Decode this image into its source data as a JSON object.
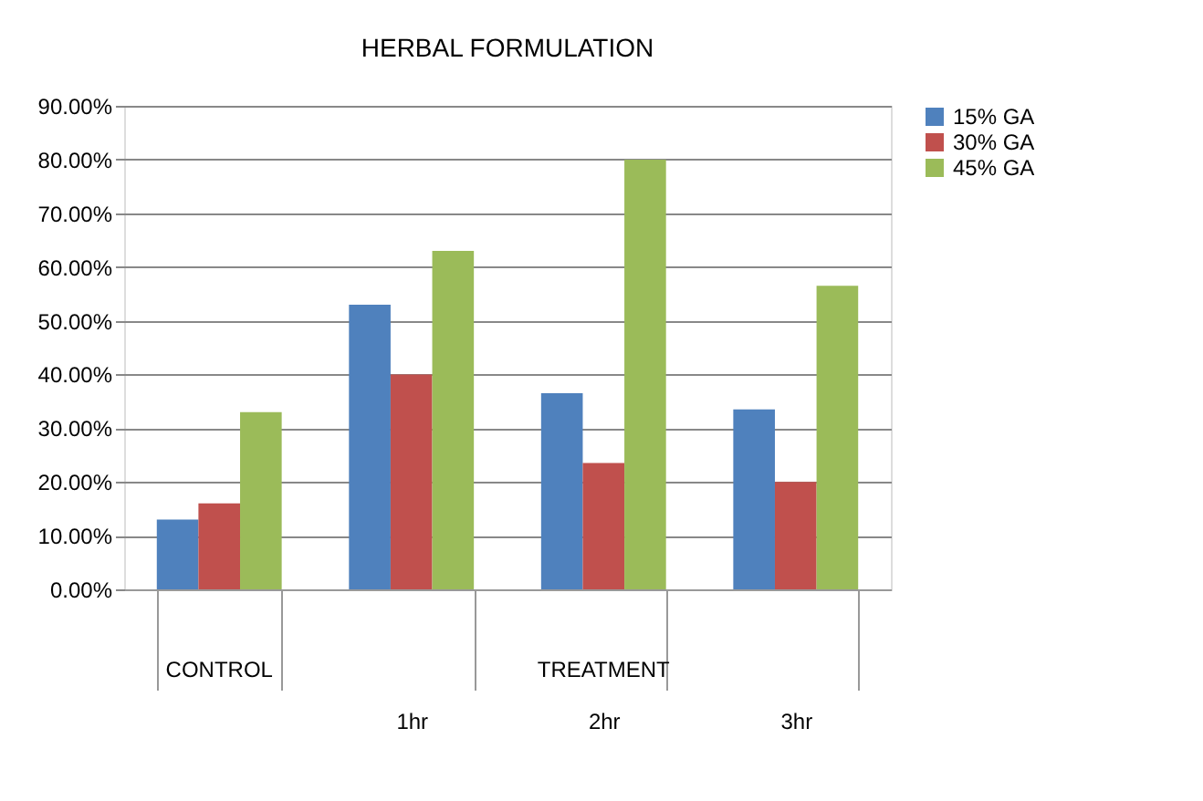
{
  "chart_data": {
    "type": "bar",
    "title": "HERBAL FORMULATION",
    "categories": [
      null,
      "1hr",
      "2hr",
      "3hr"
    ],
    "series": [
      {
        "name": "15% GA",
        "color": "#4f81bd",
        "values": [
          13,
          53,
          36.5,
          33.5
        ]
      },
      {
        "name": "30% GA",
        "color": "#c0504d",
        "values": [
          16,
          40,
          23.5,
          20
        ]
      },
      {
        "name": "45% GA",
        "color": "#9bbb59",
        "values": [
          33,
          63,
          80,
          56.5
        ]
      }
    ],
    "ylim": [
      0,
      90
    ],
    "yticks": [
      {
        "value": 0,
        "label": "0.00%"
      },
      {
        "value": 10,
        "label": "10.00%"
      },
      {
        "value": 20,
        "label": "20.00%"
      },
      {
        "value": 30,
        "label": "30.00%"
      },
      {
        "value": 40,
        "label": "40.00%"
      },
      {
        "value": 50,
        "label": "50.00%"
      },
      {
        "value": 60,
        "label": "60.00%"
      },
      {
        "value": 70,
        "label": "70.00%"
      },
      {
        "value": 80,
        "label": "80.00%"
      },
      {
        "value": 90,
        "label": "90.00%"
      }
    ],
    "annotations": [
      "CONTROL",
      "TREATMENT"
    ],
    "grid": "y",
    "legend": "right"
  }
}
